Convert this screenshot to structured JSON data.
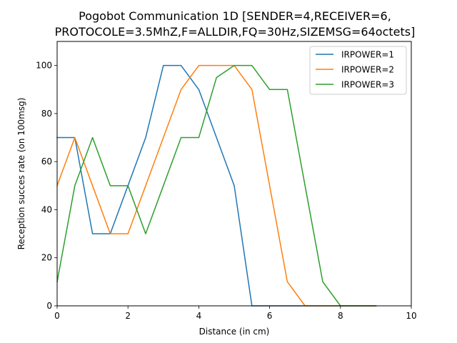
{
  "chart_data": {
    "type": "line",
    "title_lines": [
      "Pogobot Communication 1D [SENDER=4,RECEIVER=6,",
      "PROTOCOLE=3.5MhZ,F=ALLDIR,FQ=30Hz,SIZEMSG=64octets]"
    ],
    "xlabel": "Distance (in cm)",
    "ylabel": "Reception succes rate (on 100msg)",
    "xlim": [
      0,
      10
    ],
    "ylim": [
      0,
      110
    ],
    "xticks": [
      0,
      2,
      4,
      6,
      8,
      10
    ],
    "yticks": [
      0,
      20,
      40,
      60,
      80,
      100
    ],
    "grid": false,
    "legend_position": "top-right",
    "series": [
      {
        "name": "IRPOWER=1",
        "color": "#1f77b4",
        "x": [
          0,
          0.5,
          1,
          1.5,
          2,
          2.5,
          3,
          3.5,
          4,
          4.5,
          5,
          5.5,
          6,
          6.5,
          7,
          7.5,
          8,
          8.5,
          9
        ],
        "y": [
          70,
          70,
          30,
          30,
          50,
          70,
          100,
          100,
          90,
          70,
          50,
          0,
          0,
          0,
          0,
          0,
          0,
          0,
          0
        ]
      },
      {
        "name": "IRPOWER=2",
        "color": "#ff7f0e",
        "x": [
          0,
          0.5,
          1,
          1.5,
          2,
          2.5,
          3,
          3.5,
          4,
          4.5,
          5,
          5.5,
          6,
          6.5,
          7,
          7.5,
          8,
          8.5,
          9
        ],
        "y": [
          50,
          70,
          50,
          30,
          30,
          50,
          70,
          90,
          100,
          100,
          100,
          90,
          50,
          10,
          0,
          0,
          0,
          0,
          0
        ]
      },
      {
        "name": "IRPOWER=3",
        "color": "#2ca02c",
        "x": [
          0,
          0.5,
          1,
          1.5,
          2,
          2.5,
          3,
          3.5,
          4,
          4.5,
          5,
          5.5,
          6,
          6.5,
          7,
          7.5,
          8,
          8.5,
          9
        ],
        "y": [
          10,
          50,
          70,
          50,
          50,
          30,
          50,
          70,
          70,
          95,
          100,
          100,
          90,
          90,
          50,
          10,
          0,
          0,
          0
        ]
      }
    ]
  }
}
